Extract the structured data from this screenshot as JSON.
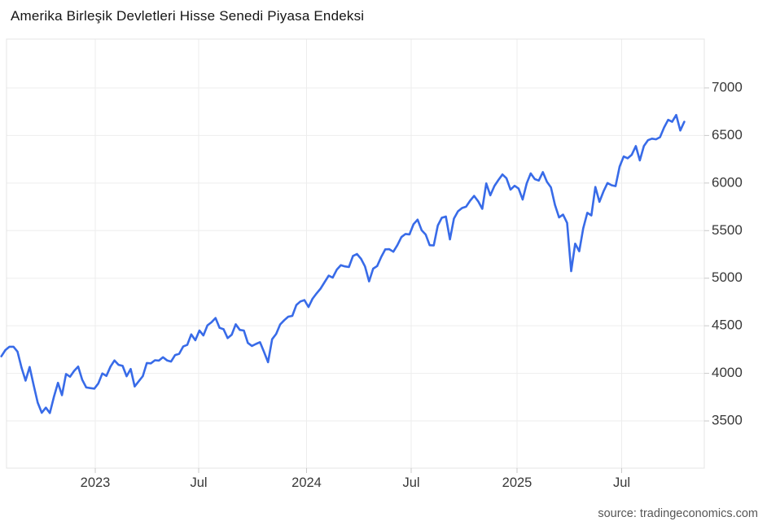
{
  "chart": {
    "title": "Amerika Birleşik Devletleri Hisse Senedi Piyasa Endeksi",
    "source": "source: tradingeconomics.com"
  },
  "colors": {
    "line": "#386BE8",
    "grid": "#EDEDED",
    "border": "#E4E4E4",
    "tick": "#C9C9C9",
    "axis_text": "#383838",
    "title_text": "#151515",
    "source_text": "#565656",
    "background": "#FFFFFF"
  },
  "chart_data": {
    "type": "line",
    "title": "Amerika Birleşik Devletleri Hisse Senedi Piyasa Endeksi",
    "source": "source: tradingeconomics.com",
    "frequency": "weekly",
    "x_range": [
      "2022-08",
      "2025-10"
    ],
    "x_tick_labels": [
      "2023",
      "Jul",
      "2024",
      "Jul",
      "2025",
      "Jul"
    ],
    "y_tick_labels": [
      "3500",
      "4000",
      "4500",
      "5000",
      "5500",
      "6000",
      "6500",
      "7000"
    ],
    "ylim": [
      3004,
      7513
    ],
    "grid": true,
    "legend": false,
    "series": [
      {
        "name": "Hisse Senedi Piyasa Endeksi",
        "color": "#386BE8",
        "values": [
          4180,
          4245,
          4280,
          4280,
          4228,
          4058,
          3924,
          4067,
          3873,
          3693,
          3586,
          3640,
          3583,
          3753,
          3901,
          3771,
          3993,
          3965,
          4026,
          4072,
          3934,
          3852,
          3845,
          3839,
          3895,
          3999,
          3973,
          4071,
          4136,
          4090,
          4079,
          3970,
          4046,
          3862,
          3917,
          3971,
          4109,
          4105,
          4138,
          4134,
          4169,
          4136,
          4124,
          4192,
          4205,
          4282,
          4299,
          4410,
          4348,
          4450,
          4399,
          4505,
          4536,
          4582,
          4478,
          4464,
          4370,
          4406,
          4516,
          4457,
          4450,
          4320,
          4288,
          4309,
          4328,
          4224,
          4117,
          4358,
          4415,
          4514,
          4559,
          4595,
          4604,
          4719,
          4755,
          4770,
          4697,
          4784,
          4840,
          4891,
          4959,
          5027,
          5006,
          5089,
          5137,
          5124,
          5117,
          5234,
          5254,
          5204,
          5123,
          4967,
          5100,
          5128,
          5223,
          5303,
          5305,
          5278,
          5347,
          5432,
          5465,
          5460,
          5567,
          5615,
          5505,
          5459,
          5347,
          5344,
          5554,
          5635,
          5648,
          5408,
          5626,
          5703,
          5738,
          5751,
          5815,
          5865,
          5808,
          5729,
          5996,
          5871,
          5969,
          6032,
          6090,
          6051,
          5931,
          5971,
          5942,
          5827,
          5997,
          6101,
          6041,
          6026,
          6115,
          6013,
          5955,
          5770,
          5639,
          5668,
          5581,
          5074,
          5363,
          5283,
          5525,
          5687,
          5660,
          5958,
          5803,
          5912,
          6000,
          5977,
          5968,
          6173,
          6279,
          6260,
          6297,
          6389,
          6238,
          6389,
          6450,
          6467,
          6460,
          6482,
          6584,
          6664,
          6644,
          6716,
          6552,
          6644
        ]
      }
    ]
  }
}
